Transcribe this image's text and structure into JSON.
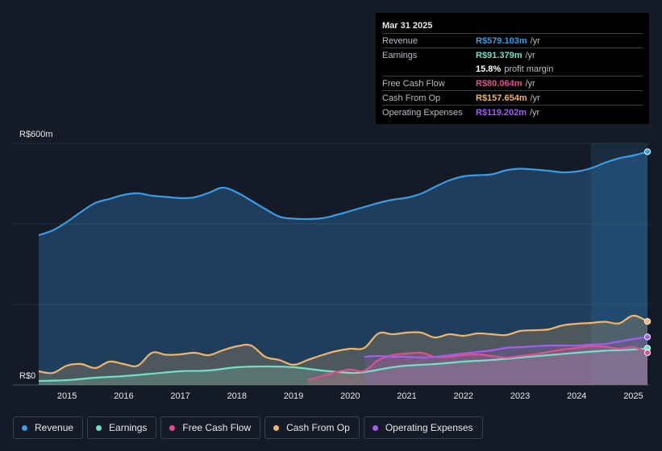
{
  "tooltip": {
    "date": "Mar 31 2025",
    "rows": [
      {
        "label": "Revenue",
        "value": "R$579.103m",
        "unit": "/yr",
        "color": "#3b9be5"
      },
      {
        "label": "Earnings",
        "value": "R$91.379m",
        "unit": "/yr",
        "color": "#6fe0c6"
      },
      {
        "label": "",
        "value": "15.8%",
        "unit": "profit margin",
        "color": "#ffffff"
      },
      {
        "label": "Free Cash Flow",
        "value": "R$80.064m",
        "unit": "/yr",
        "color": "#e0508f"
      },
      {
        "label": "Cash From Op",
        "value": "R$157.654m",
        "unit": "/yr",
        "color": "#f0b46a"
      },
      {
        "label": "Operating Expenses",
        "value": "R$119.202m",
        "unit": "/yr",
        "color": "#a25ef0"
      }
    ]
  },
  "legend": [
    {
      "label": "Revenue",
      "color": "#3b9be5"
    },
    {
      "label": "Earnings",
      "color": "#6fe0c6"
    },
    {
      "label": "Free Cash Flow",
      "color": "#e0508f"
    },
    {
      "label": "Cash From Op",
      "color": "#f0b46a"
    },
    {
      "label": "Operating Expenses",
      "color": "#a25ef0"
    }
  ],
  "chart_data": {
    "type": "area",
    "y_unit": "R$m",
    "ylim": [
      0,
      600
    ],
    "xlim": [
      2014.5,
      2025.25
    ],
    "y_tick_labels": [
      {
        "value": 600,
        "label": "R$600m"
      },
      {
        "value": 0,
        "label": "R$0"
      }
    ],
    "y_gridlines": [
      0,
      200,
      400,
      600
    ],
    "x_ticks": [
      "2015",
      "2016",
      "2017",
      "2018",
      "2019",
      "2020",
      "2021",
      "2022",
      "2023",
      "2024",
      "2025"
    ],
    "highlight_from": 2024.25,
    "series": [
      {
        "name": "Revenue",
        "color": "#3b9be5",
        "x": [
          2014.5,
          2014.75,
          2015.0,
          2015.25,
          2015.5,
          2015.75,
          2016.0,
          2016.25,
          2016.5,
          2016.75,
          2017.0,
          2017.25,
          2017.5,
          2017.75,
          2018.0,
          2018.25,
          2018.5,
          2018.75,
          2019.0,
          2019.25,
          2019.5,
          2019.75,
          2020.0,
          2020.25,
          2020.5,
          2020.75,
          2021.0,
          2021.25,
          2021.5,
          2021.75,
          2022.0,
          2022.25,
          2022.5,
          2022.75,
          2023.0,
          2023.25,
          2023.5,
          2023.75,
          2024.0,
          2024.25,
          2024.5,
          2024.75,
          2025.0,
          2025.25
        ],
        "values": [
          372,
          384,
          405,
          430,
          452,
          462,
          472,
          476,
          470,
          467,
          464,
          466,
          477,
          490,
          478,
          458,
          437,
          418,
          413,
          412,
          414,
          422,
          432,
          442,
          452,
          460,
          465,
          475,
          492,
          508,
          518,
          521,
          523,
          533,
          537,
          535,
          532,
          528,
          530,
          538,
          552,
          563,
          570,
          579.1
        ]
      },
      {
        "name": "Earnings",
        "color": "#6fe0c6",
        "x": [
          2014.5,
          2015.0,
          2015.5,
          2016.0,
          2016.5,
          2017.0,
          2017.5,
          2018.0,
          2018.5,
          2019.0,
          2019.5,
          2020.0,
          2020.25,
          2020.5,
          2020.75,
          2021.0,
          2021.5,
          2022.0,
          2022.5,
          2023.0,
          2023.5,
          2024.0,
          2024.5,
          2025.0,
          2025.25
        ],
        "values": [
          10,
          12,
          18,
          22,
          28,
          34,
          36,
          44,
          46,
          44,
          36,
          30,
          32,
          38,
          44,
          48,
          52,
          58,
          62,
          68,
          74,
          80,
          85,
          88,
          91.4
        ]
      },
      {
        "name": "Free Cash Flow",
        "color": "#e0508f",
        "x": [
          2019.25,
          2019.5,
          2019.75,
          2020.0,
          2020.25,
          2020.5,
          2020.75,
          2021.0,
          2021.25,
          2021.5,
          2021.75,
          2022.0,
          2022.25,
          2022.5,
          2022.75,
          2023.0,
          2023.25,
          2023.5,
          2023.75,
          2024.0,
          2024.25,
          2024.5,
          2024.75,
          2025.0,
          2025.25
        ],
        "values": [
          12,
          22,
          32,
          38,
          35,
          62,
          74,
          78,
          80,
          70,
          70,
          74,
          76,
          72,
          68,
          72,
          76,
          82,
          88,
          92,
          96,
          95,
          90,
          94,
          80.1
        ]
      },
      {
        "name": "Cash From Op",
        "color": "#f0b46a",
        "x": [
          2014.5,
          2014.75,
          2015.0,
          2015.25,
          2015.5,
          2015.75,
          2016.0,
          2016.25,
          2016.5,
          2016.75,
          2017.0,
          2017.25,
          2017.5,
          2017.75,
          2018.0,
          2018.25,
          2018.5,
          2018.75,
          2019.0,
          2019.25,
          2019.5,
          2019.75,
          2020.0,
          2020.25,
          2020.5,
          2020.75,
          2021.0,
          2021.25,
          2021.5,
          2021.75,
          2022.0,
          2022.25,
          2022.5,
          2022.75,
          2023.0,
          2023.25,
          2023.5,
          2023.75,
          2024.0,
          2024.25,
          2024.5,
          2024.75,
          2025.0,
          2025.25
        ],
        "values": [
          34,
          30,
          48,
          52,
          42,
          58,
          52,
          48,
          80,
          75,
          76,
          80,
          74,
          86,
          96,
          98,
          70,
          62,
          50,
          62,
          74,
          84,
          90,
          92,
          128,
          126,
          130,
          130,
          118,
          126,
          122,
          128,
          126,
          124,
          134,
          136,
          138,
          148,
          152,
          154,
          157,
          153,
          172,
          157.7
        ]
      },
      {
        "name": "Operating Expenses",
        "color": "#a25ef0",
        "x": [
          2020.25,
          2020.5,
          2020.75,
          2021.0,
          2021.25,
          2021.5,
          2021.75,
          2022.0,
          2022.25,
          2022.5,
          2022.75,
          2023.0,
          2023.25,
          2023.5,
          2023.75,
          2024.0,
          2024.25,
          2024.5,
          2024.75,
          2025.0,
          2025.25
        ],
        "values": [
          70,
          72,
          70,
          70,
          68,
          70,
          74,
          78,
          82,
          86,
          92,
          94,
          96,
          98,
          98,
          98,
          100,
          102,
          108,
          114,
          119.2
        ]
      }
    ]
  }
}
